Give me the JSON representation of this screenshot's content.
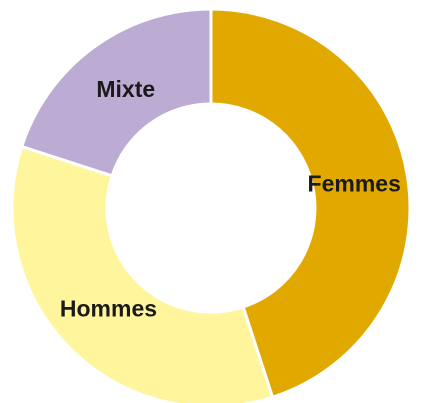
{
  "chart_data": {
    "type": "donut",
    "categories": [
      "Femmes",
      "Hommes",
      "Mixte"
    ],
    "values": [
      45,
      35,
      20
    ],
    "colors": [
      "#e1a900",
      "#fff59c",
      "#bcacd4"
    ]
  }
}
